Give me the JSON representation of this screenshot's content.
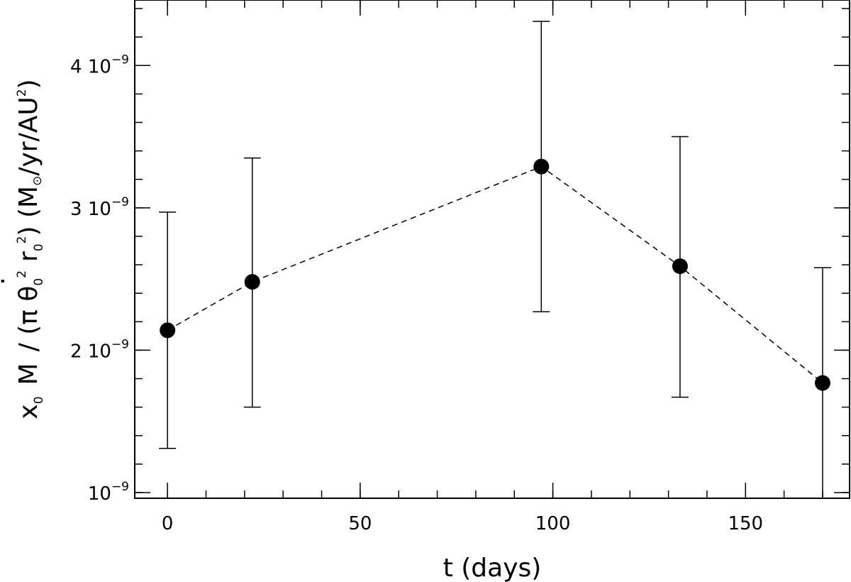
{
  "chart_data": {
    "type": "scatter",
    "xlabel": "t (days)",
    "ylabel": {
      "x_sub": "0",
      "mdot": "M",
      "slash_paren": "/ (π θ",
      "theta_sub": "0",
      "theta_sup": "2",
      "r": "r",
      "r_sub": "0",
      "r_sup": "2",
      "units_open": ") (M",
      "sun": "⊙",
      "units_mid": "/yr/AU",
      "au_sup": "2",
      "units_close": ")",
      "x": "x"
    },
    "xlim": [
      -8.5,
      177
    ],
    "ylim": [
      9.6e-10,
      4.46e-09
    ],
    "x_ticks": [
      {
        "value": 0,
        "label": "0"
      },
      {
        "value": 50,
        "label": "50"
      },
      {
        "value": 100,
        "label": "100"
      },
      {
        "value": 150,
        "label": "150"
      }
    ],
    "x_minor_step": 10,
    "y_ticks": [
      {
        "value": 1e-09,
        "mant": "",
        "base": "10",
        "exp": "−9"
      },
      {
        "value": 2e-09,
        "mant": "2",
        "base": "10",
        "exp": "−9"
      },
      {
        "value": 3e-09,
        "mant": "3",
        "base": "10",
        "exp": "−9"
      },
      {
        "value": 4e-09,
        "mant": "4",
        "base": "10",
        "exp": "−9"
      }
    ],
    "y_minor_step": 2e-10,
    "series": [
      {
        "line_style": "dashed",
        "points": [
          {
            "x": 0,
            "y": 2.14e-09,
            "y_low": 1.31e-09,
            "y_high": 2.97e-09
          },
          {
            "x": 22,
            "y": 2.48e-09,
            "y_low": 1.6e-09,
            "y_high": 3.35e-09
          },
          {
            "x": 97,
            "y": 3.29e-09,
            "y_low": 2.27e-09,
            "y_high": 4.31e-09
          },
          {
            "x": 133,
            "y": 2.59e-09,
            "y_low": 1.67e-09,
            "y_high": 3.5e-09
          },
          {
            "x": 170,
            "y": 1.77e-09,
            "y_low": 9.6e-10,
            "y_high": 2.58e-09
          }
        ]
      }
    ],
    "colors": {
      "line": "#000000",
      "marker": "#000000",
      "background": "#ffffff"
    }
  }
}
